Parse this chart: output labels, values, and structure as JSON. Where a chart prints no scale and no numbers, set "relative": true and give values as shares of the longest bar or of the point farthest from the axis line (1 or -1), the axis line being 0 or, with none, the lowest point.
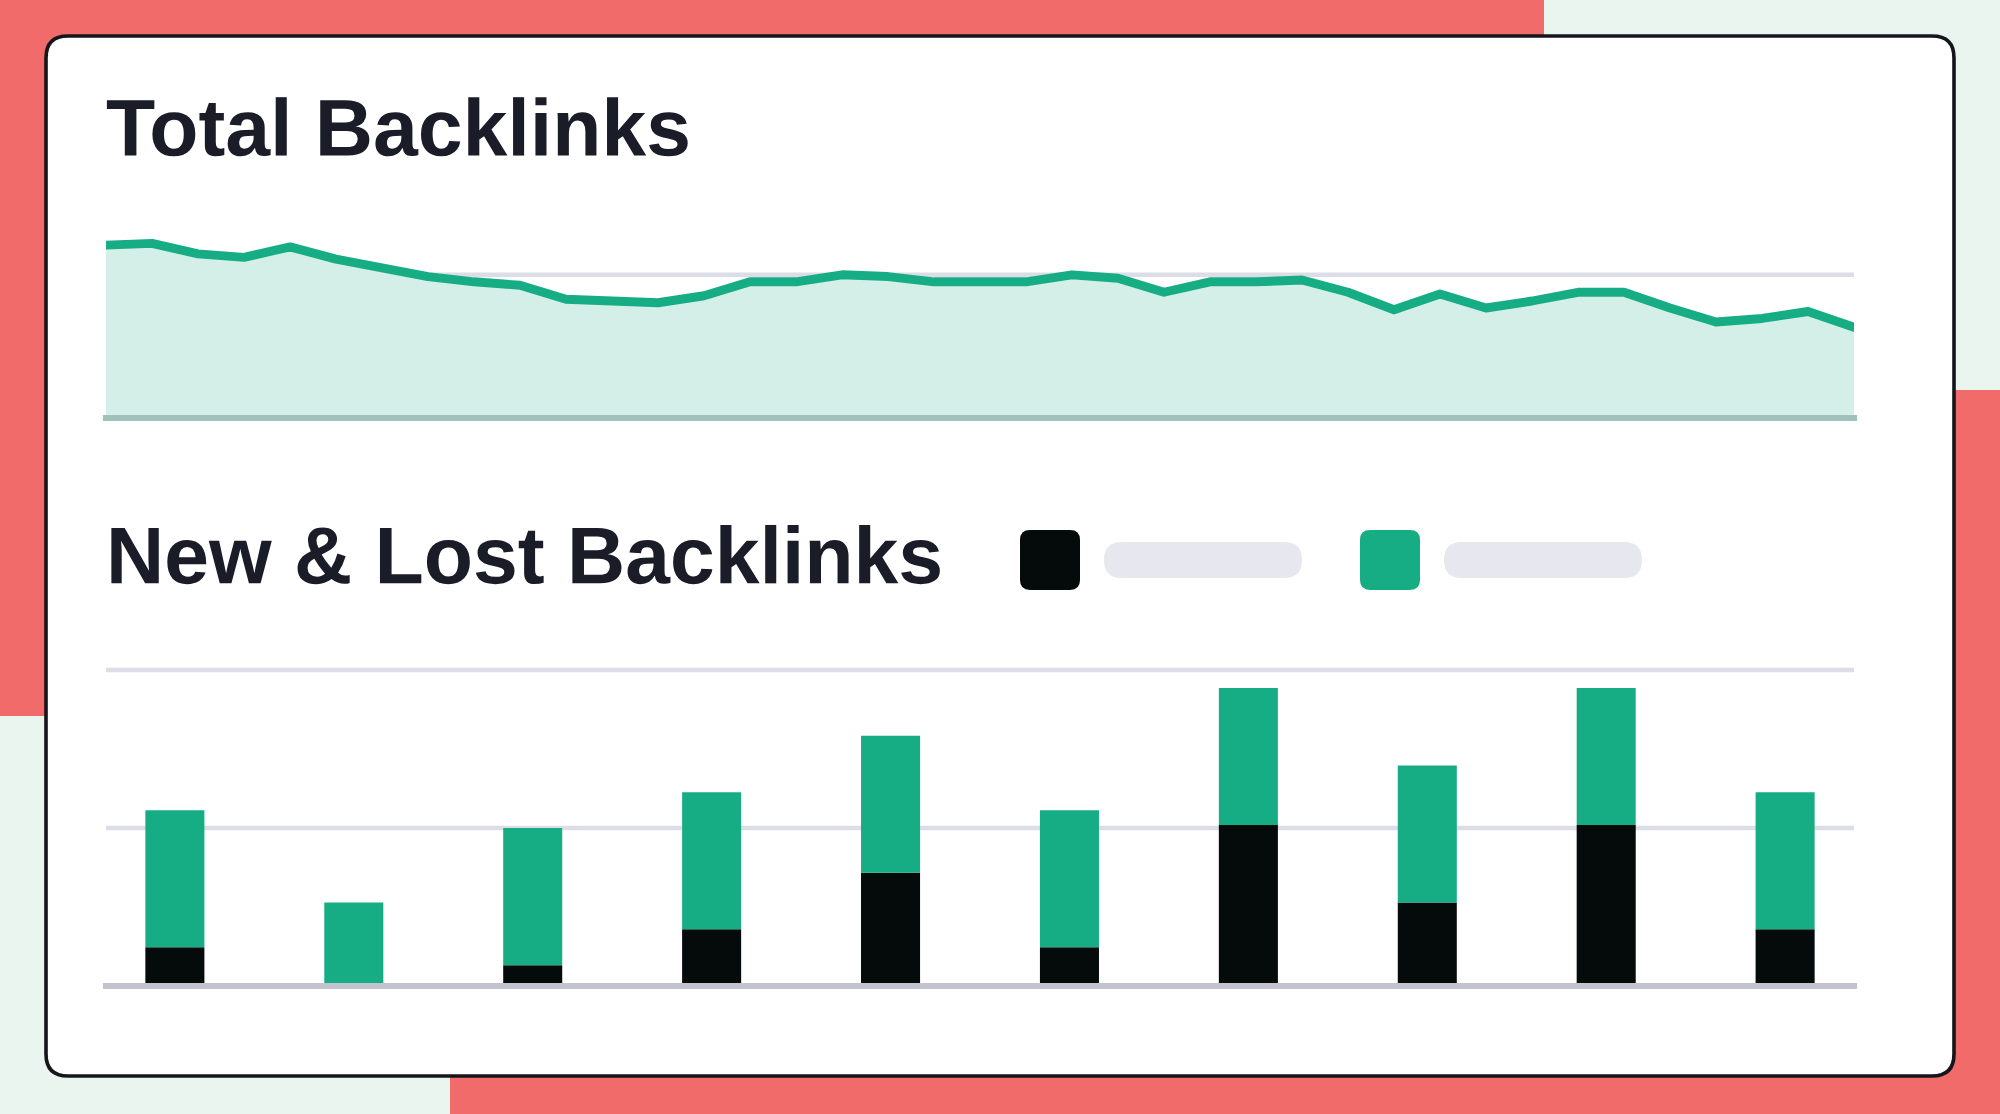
{
  "chart_data": [
    {
      "type": "area",
      "title": "Total Backlinks",
      "relative": true,
      "categories": [
        null,
        null,
        null,
        null,
        null,
        null,
        null,
        null,
        null,
        null,
        null,
        null,
        null,
        null,
        null,
        null,
        null,
        null,
        null,
        null,
        null,
        null,
        null,
        null,
        null,
        null,
        null,
        null,
        null,
        null,
        null,
        null,
        null,
        null,
        null,
        null,
        null,
        null,
        null
      ],
      "series": [
        {
          "color": "#17ad84",
          "values": [
            0.99,
            1.0,
            0.94,
            0.92,
            0.98,
            0.91,
            0.86,
            0.81,
            0.78,
            0.76,
            0.68,
            0.67,
            0.66,
            0.7,
            0.78,
            0.78,
            0.82,
            0.81,
            0.78,
            0.78,
            0.78,
            0.82,
            0.8,
            0.72,
            0.78,
            0.78,
            0.79,
            0.72,
            0.62,
            0.71,
            0.63,
            0.67,
            0.72,
            0.72,
            0.63,
            0.55,
            0.57,
            0.61,
            0.52
          ]
        }
      ],
      "ref_lines": [
        {
          "axis": "y",
          "value": 0.82,
          "color": "#dcdde6"
        }
      ]
    },
    {
      "type": "bar",
      "title": "New & Lost Backlinks",
      "relative": true,
      "stacked": true,
      "categories": [
        null,
        null,
        null,
        null,
        null,
        null,
        null,
        null,
        null,
        null
      ],
      "series": [
        {
          "color": "#050a0a",
          "values": [
            0.13,
            0,
            0.07,
            0.19,
            0.38,
            0.13,
            0.54,
            0.28,
            0.54,
            0.19
          ]
        },
        {
          "color": "#17ad84",
          "values": [
            0.46,
            0.28,
            0.46,
            0.46,
            0.46,
            0.46,
            0.46,
            0.46,
            0.46,
            0.46
          ]
        }
      ],
      "ref_lines": [
        {
          "axis": "y",
          "value": 0.53,
          "color": "#dcdde6"
        },
        {
          "axis": "y",
          "value": 1.06,
          "color": "#dcdde6"
        }
      ]
    }
  ]
}
